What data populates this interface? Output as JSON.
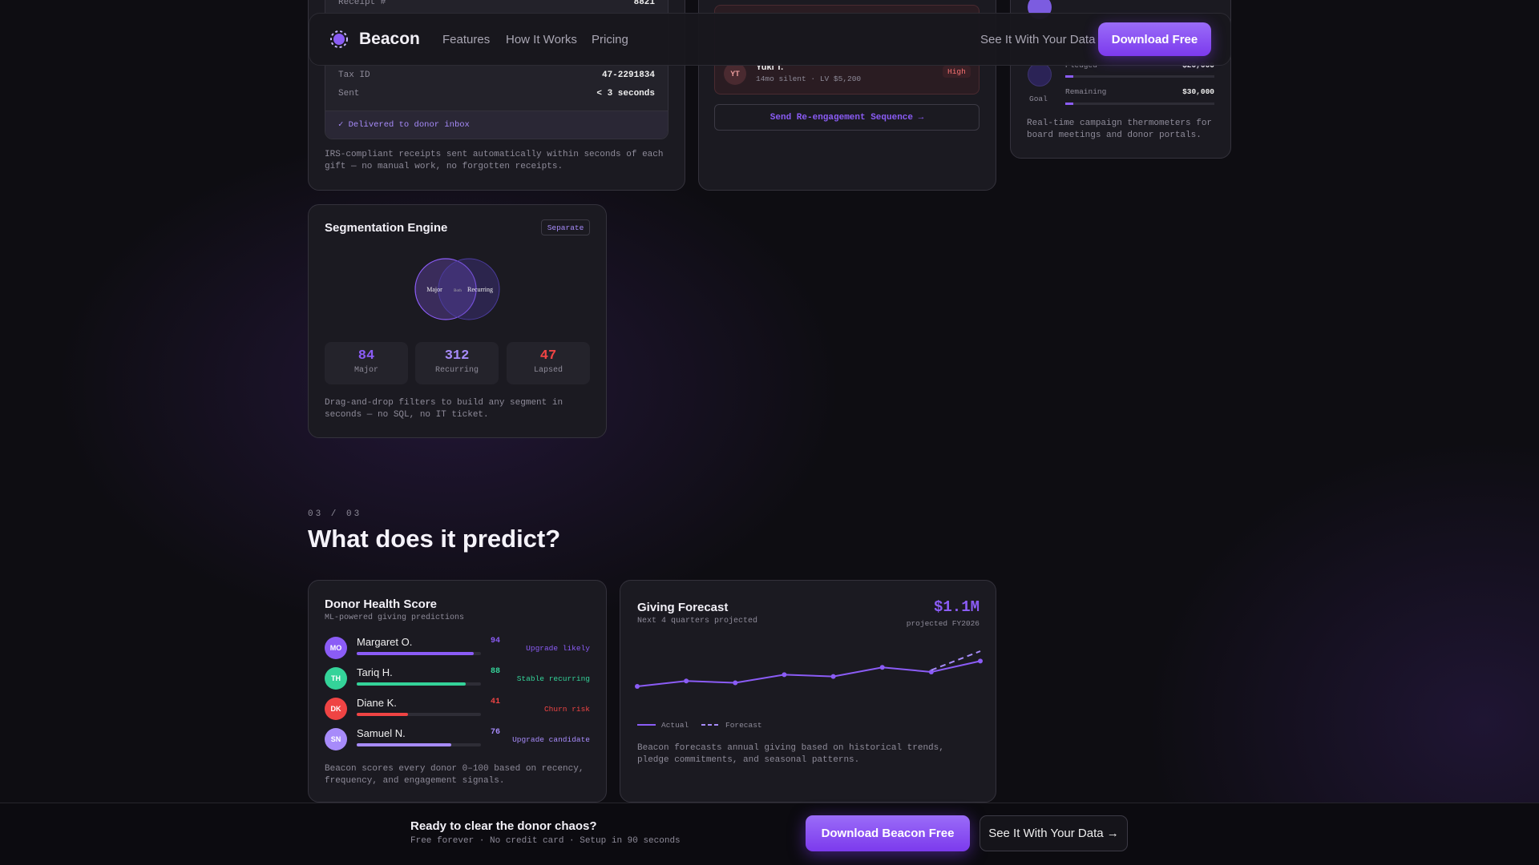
{
  "nav": {
    "brand": "Beacon",
    "links": [
      "Features",
      "How It Works",
      "Pricing"
    ],
    "secondary": "See It With Your Data",
    "cta": "Download Free"
  },
  "receipt_card": {
    "rows": [
      [
        "Receipt #",
        "8821"
      ],
      [
        "Tax ID",
        "47-2291834"
      ],
      [
        "Sent",
        "< 3 seconds"
      ]
    ],
    "status": "Delivered to donor inbox",
    "description": "IRS-compliant receipts sent automatically within seconds of each gift — no manual work, no forgotten receipts."
  },
  "reengage_card": {
    "donor": {
      "initials": "YT",
      "name": "Yuki T.",
      "detail": "14mo silent · LV $5,200",
      "risk": "High"
    },
    "button": "Send Re-engagement Sequence →"
  },
  "campaign_card": {
    "goal_label": "Goal",
    "rows": [
      {
        "label": "Pledged",
        "value": "$20,000"
      },
      {
        "label": "Remaining",
        "value": "$30,000"
      }
    ],
    "description": "Real-time campaign thermometers for board meetings and donor portals."
  },
  "segmentation_card": {
    "title": "Segmentation Engine",
    "badge": "Separate",
    "venn": [
      "Major",
      "Both",
      "Recurring"
    ],
    "stats": [
      {
        "value": "84",
        "label": "Major",
        "color": "#8b5cf6"
      },
      {
        "value": "312",
        "label": "Recurring",
        "color": "#a78bfa"
      },
      {
        "value": "47",
        "label": "Lapsed",
        "color": "#ef4444"
      }
    ],
    "description": "Drag-and-drop filters to build any segment in seconds — no SQL, no IT ticket."
  },
  "section": {
    "step": "03 / 03",
    "heading": "What does it predict?"
  },
  "health_card": {
    "title": "Donor Health Score",
    "subtitle": "ML-powered giving predictions",
    "donors": [
      {
        "initials": "MO",
        "name": "Margaret O.",
        "score": 94,
        "status": "Upgrade likely",
        "color": "#8b5cf6"
      },
      {
        "initials": "TH",
        "name": "Tariq H.",
        "score": 88,
        "status": "Stable recurring",
        "color": "#34d399"
      },
      {
        "initials": "DK",
        "name": "Diane K.",
        "score": 41,
        "status": "Churn risk",
        "color": "#ef4444"
      },
      {
        "initials": "SN",
        "name": "Samuel N.",
        "score": 76,
        "status": "Upgrade candidate",
        "color": "#a78bfa"
      }
    ],
    "description": "Beacon scores every donor 0–100 based on recency, frequency, and engagement signals."
  },
  "forecast_card": {
    "title": "Giving Forecast",
    "subtitle": "Next 4 quarters projected",
    "total": "$1.1M",
    "total_note": "projected FY2026",
    "chart": {
      "type": "line",
      "series": [
        {
          "name": "Actual",
          "color": "#8b5cf6",
          "values": [
            40,
            46,
            44,
            53,
            51,
            61,
            56,
            68
          ]
        },
        {
          "name": "Forecast",
          "color": "#a78bfa",
          "values": [
            null,
            null,
            null,
            null,
            null,
            null,
            58,
            79
          ]
        }
      ]
    },
    "description": "Beacon forecasts annual giving based on historical trends, pledge commitments, and seasonal patterns."
  },
  "cta_bar": {
    "title": "Ready to clear the donor chaos?",
    "subtitle": "Free forever · No credit card · Setup in 90 seconds",
    "primary": "Download Beacon Free",
    "secondary": "See It With Your Data →"
  }
}
